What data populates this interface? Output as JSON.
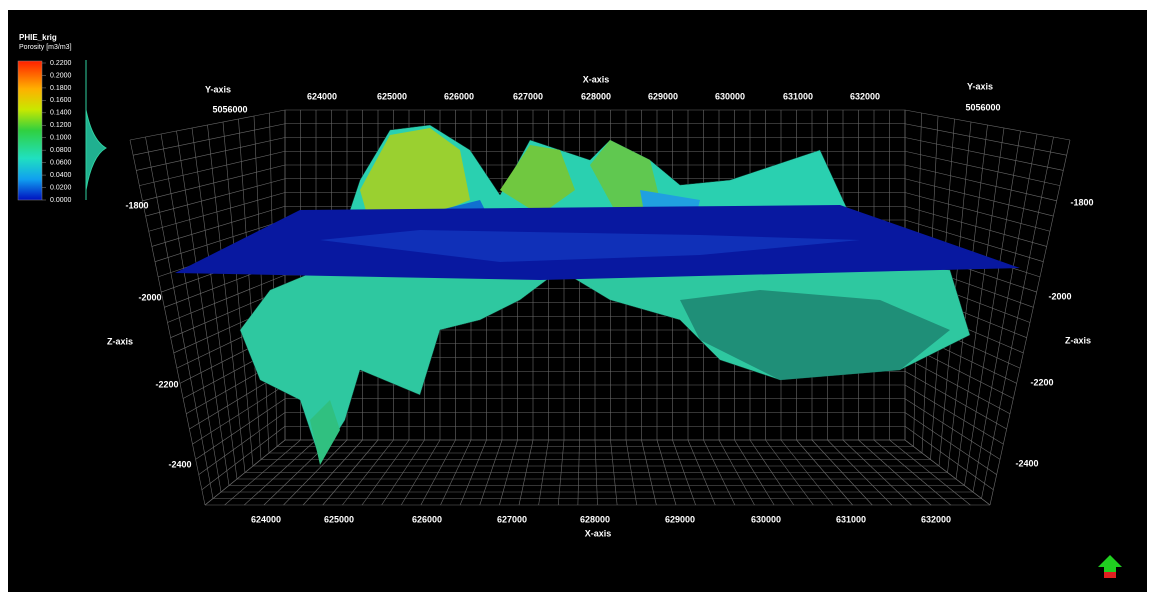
{
  "legend": {
    "title": "PHIE_krig",
    "subtitle": "Porosity [m3/m3]",
    "ticks": [
      "0.2200",
      "0.2000",
      "0.1800",
      "0.1600",
      "0.1400",
      "0.1200",
      "0.1000",
      "0.0800",
      "0.0600",
      "0.0400",
      "0.0200",
      "0.0000"
    ]
  },
  "axes": {
    "x_label_top": "X-axis",
    "x_label_bottom": "X-axis",
    "y_label_left": "Y-axis",
    "y_label_right": "Y-axis",
    "y_tick_left": "5056000",
    "y_tick_right": "5056000",
    "z_label_left": "Z-axis",
    "z_label_right": "Z-axis",
    "x_ticks_top": [
      "624000",
      "625000",
      "626000",
      "627000",
      "628000",
      "629000",
      "630000",
      "631000",
      "632000"
    ],
    "x_ticks_bottom": [
      "624000",
      "625000",
      "626000",
      "627000",
      "628000",
      "629000",
      "630000",
      "631000",
      "632000"
    ],
    "z_ticks_left": [
      "-1800",
      "-2000",
      "-2200",
      "-2400"
    ],
    "z_ticks_right": [
      "-1800",
      "-2000",
      "-2200",
      "-2400"
    ]
  }
}
